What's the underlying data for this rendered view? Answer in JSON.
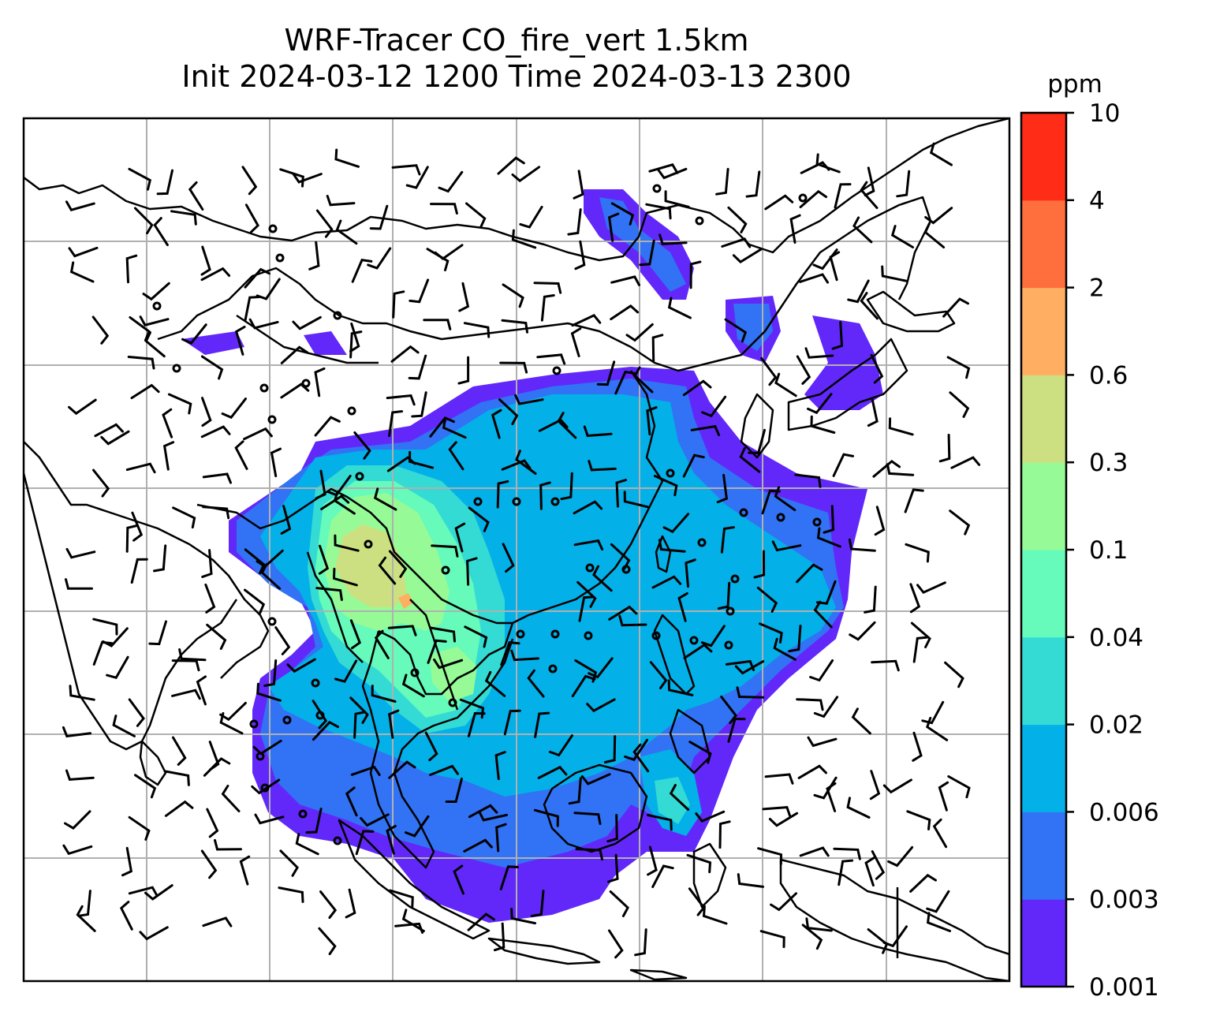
{
  "figure": {
    "title_line1": "WRF-Tracer CO_fire_vert 1.5km",
    "title_line2": "Init 2024-03-12 1200 Time 2024-03-13 2300"
  },
  "colorbar": {
    "unit_label": "ppm",
    "levels": [
      "0.001",
      "0.003",
      "0.006",
      "0.02",
      "0.04",
      "0.1",
      "0.3",
      "0.6",
      "2",
      "4",
      "10"
    ],
    "colors": [
      "#6228fa",
      "#3173f4",
      "#04b0e8",
      "#33dbd4",
      "#66fbbb",
      "#96fb96",
      "#cde081",
      "#ffae62",
      "#ff6f3d",
      "#ff2c17"
    ]
  },
  "map": {
    "gridlines": true,
    "grid_color": "#b0b0b0",
    "coastline_color": "#000000",
    "wind_barb_color": "#000000"
  }
}
